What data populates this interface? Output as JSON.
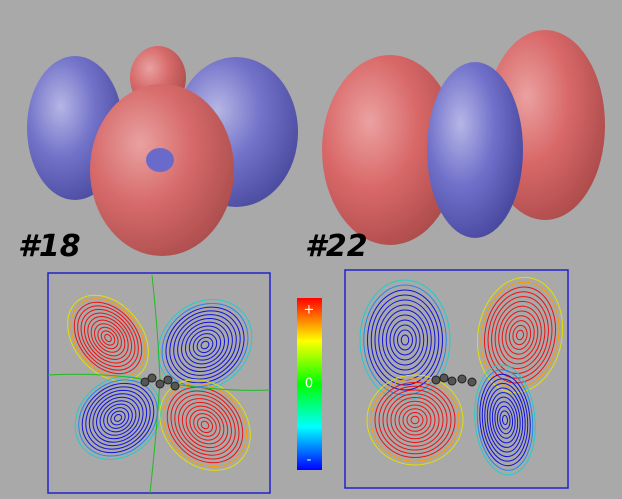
{
  "panels": [
    {
      "label": "#18"
    },
    {
      "label": "#22"
    }
  ],
  "colorbar": {
    "top": "+",
    "middle": "0",
    "bottom": "-"
  }
}
